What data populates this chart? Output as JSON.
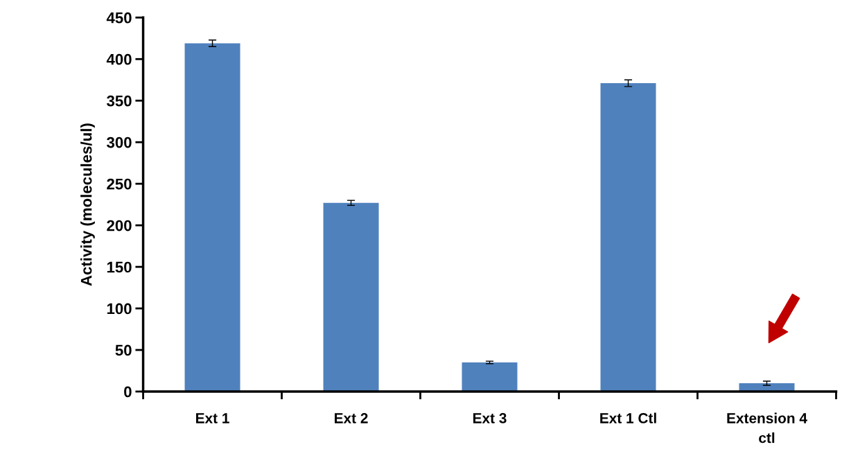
{
  "chart_data": {
    "type": "bar",
    "ylabel": "Activity (molecules/ul)",
    "categories": [
      "Ext 1",
      "Ext 2",
      "Ext 3",
      "Ext 1 Ctl",
      "Extension 4\nctl"
    ],
    "values": [
      419,
      227,
      35,
      371,
      10
    ],
    "errors": [
      4,
      3,
      1.5,
      4,
      2.5
    ],
    "color": "#4f81bd",
    "ylim": [
      0,
      450
    ],
    "yticks": [
      0,
      50,
      100,
      150,
      200,
      250,
      300,
      350,
      400,
      450
    ],
    "grid": false
  }
}
